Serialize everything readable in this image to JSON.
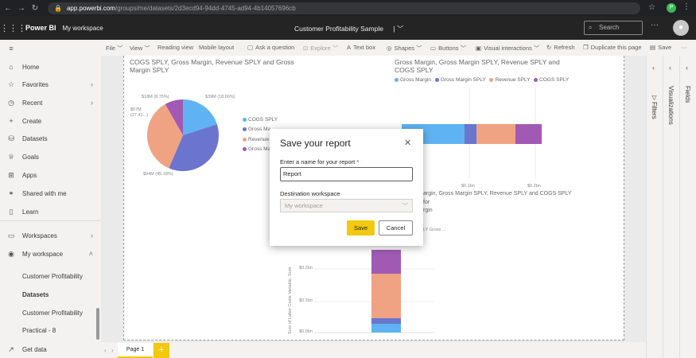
{
  "browser": {
    "url_host": "app.powerbi.com",
    "url_path": "/groups/me/datasets/2d3ecd94-94dd-4745-ad94-4b14057696cb",
    "profile_initial": "P"
  },
  "header": {
    "brand": "Power BI",
    "workspace": "My workspace",
    "report_title": "Customer Profitability Sample",
    "search_placeholder": "Search",
    "more": "···"
  },
  "nav": {
    "items": [
      {
        "label": "Home",
        "icon": "home-icon"
      },
      {
        "label": "Favorites",
        "icon": "star-icon"
      },
      {
        "label": "Recent",
        "icon": "clock-icon"
      },
      {
        "label": "Create",
        "icon": "plus-icon"
      },
      {
        "label": "Datasets",
        "icon": "cylinder-icon"
      },
      {
        "label": "Goals",
        "icon": "trophy-icon"
      },
      {
        "label": "Apps",
        "icon": "apps-icon"
      },
      {
        "label": "Shared with me",
        "icon": "share-icon"
      },
      {
        "label": "Learn",
        "icon": "book-icon"
      },
      {
        "label": "Workspaces",
        "icon": "workspaces-icon"
      },
      {
        "label": "My workspace",
        "icon": "user-icon"
      }
    ],
    "sub_items": [
      "Customer Profitability",
      "Datasets",
      "Customer Profitability",
      "Practical - 8"
    ],
    "get_data": "Get data"
  },
  "toolbar": {
    "file": "File",
    "view": "View",
    "reading_view": "Reading view",
    "mobile_layout": "Mobile layout",
    "ask_question": "Ask a question",
    "explore": "Explore",
    "text_box": "Text box",
    "shapes": "Shapes",
    "buttons": "Buttons",
    "visual_interactions": "Visual interactions",
    "refresh": "Refresh",
    "duplicate_page": "Duplicate this page",
    "save": "Save",
    "more": "···"
  },
  "pie_chart": {
    "title": "COGS SPLY, Gross Margin, Revenue SPLY and Gross Margin SPLY",
    "slice_labels": [
      "$18M (8.75%)",
      "$39M (18.66%)",
      "$57M (27.41...)",
      "$94M (45.18%)"
    ],
    "legend": [
      "COGS SPLY",
      "Gross Ma...",
      "Revenue ...",
      "Gross Ma..."
    ]
  },
  "bar_chart": {
    "title": "Gross Margin, Gross Margin SPLY, Revenue SPLY and COGS SPLY",
    "legend": [
      "Gross Margin",
      "Gross Margin SPLY",
      "Revenue SPLY",
      "COGS SPLY"
    ],
    "ticks": [
      "$0.1bn",
      "$0.2bn"
    ]
  },
  "column_chart": {
    "title_fragment_1": "argin, Gross Margin SPLY, Revenue SPLY and COGS SPLY",
    "title_fragment_2": "for",
    "title_fragment_3": "rgin",
    "legend_fragment": "LY  Gross ...",
    "y_axis_label": "Sum of Labor Costs Variable, Sum",
    "ticks": [
      "$0.2bn",
      "$0.1bn",
      "$0.0bn"
    ]
  },
  "right_panes": {
    "filters": "Filters",
    "visualizations": "Visualizations",
    "fields": "Fields"
  },
  "pages": {
    "tab": "Page 1",
    "add": "+"
  },
  "modal": {
    "title": "Save your report",
    "name_label": "Enter a name for your report",
    "required_mark": "*",
    "name_value": "Report",
    "dest_label": "Destination workspace",
    "dest_value": "My workspace",
    "save": "Save",
    "cancel": "Cancel"
  },
  "colors": {
    "accent": "#F2C811",
    "series_blue": "#5FB3F3",
    "series_indigo": "#6B75CE",
    "series_salmon": "#EFA383",
    "series_purple": "#A05AB4"
  }
}
